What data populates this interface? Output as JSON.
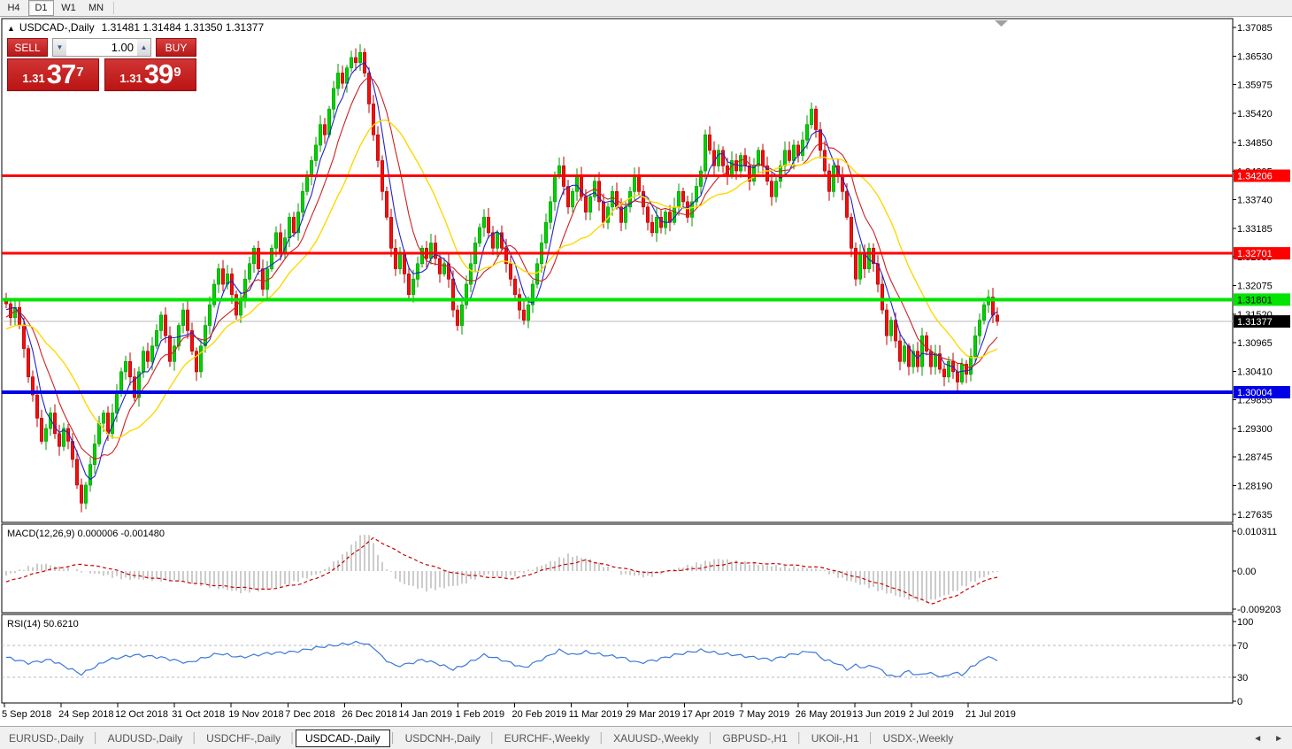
{
  "toolbar": {
    "timeframes": [
      "H4",
      "D1",
      "W1",
      "MN"
    ],
    "active_timeframe": "D1"
  },
  "chart_header": {
    "marker": "▲",
    "symbol_title": "USDCAD-,Daily",
    "ohlc_text": "1.31481 1.31484 1.31350 1.31377"
  },
  "trade_panel": {
    "sell_label": "SELL",
    "buy_label": "BUY",
    "volume": "1.00",
    "spin_down": "▼",
    "spin_up": "▲",
    "sell_price": {
      "prefix": "1.31",
      "big": "37",
      "sup": "7"
    },
    "buy_price": {
      "prefix": "1.31",
      "big": "39",
      "sup": "9"
    }
  },
  "price_axis": {
    "ticks": [
      "1.37085",
      "1.36530",
      "1.35975",
      "1.35420",
      "1.34850",
      "1.34295",
      "1.33740",
      "1.33185",
      "1.32630",
      "1.32075",
      "1.31520",
      "1.30965",
      "1.30410",
      "1.29855",
      "1.29300",
      "1.28745",
      "1.28190",
      "1.27635"
    ],
    "highlights": [
      {
        "price": 1.34206,
        "label": "1.34206",
        "bg": "#ff0000",
        "fg": "#ffffff"
      },
      {
        "price": 1.32701,
        "label": "1.32701",
        "bg": "#ff0000",
        "fg": "#ffffff"
      },
      {
        "price": 1.31801,
        "label": "1.31801",
        "bg": "#00e400",
        "fg": "#000000"
      },
      {
        "price": 1.31377,
        "label": "1.31377",
        "bg": "#000000",
        "fg": "#ffffff"
      },
      {
        "price": 1.30004,
        "label": "1.30004",
        "bg": "#0000e6",
        "fg": "#ffffff"
      }
    ]
  },
  "hlines": [
    {
      "price": 1.34206,
      "color": "#ff0000",
      "width": 3
    },
    {
      "price": 1.32701,
      "color": "#ff0000",
      "width": 3
    },
    {
      "price": 1.31801,
      "color": "#00e400",
      "width": 4
    },
    {
      "price": 1.30004,
      "color": "#0000e6",
      "width": 4
    }
  ],
  "current_price_line": {
    "price": 1.31377,
    "color": "#bbbbbb"
  },
  "chart_data": {
    "type": "candlestick",
    "symbol": "USDCAD",
    "timeframe": "Daily",
    "x_labels": [
      "5 Sep 2018",
      "24 Sep 2018",
      "12 Oct 2018",
      "31 Oct 2018",
      "19 Nov 2018",
      "7 Dec 2018",
      "26 Dec 2018",
      "14 Jan 2019",
      "1 Feb 2019",
      "20 Feb 2019",
      "11 Mar 2019",
      "29 Mar 2019",
      "17 Apr 2019",
      "7 May 2019",
      "26 May 2019",
      "13 Jun 2019",
      "2 Jul 2019",
      "21 Jul 2019"
    ],
    "y_range": [
      1.27635,
      1.37085
    ],
    "candles": {
      "up_color": "#00d200",
      "up_border": "#009a00",
      "down_color": "#ee1111",
      "down_border": "#bb0000",
      "warmup_closes": [
        1.306,
        1.308,
        1.31,
        1.312,
        1.308,
        1.304,
        1.306,
        1.31,
        1.314,
        1.316,
        1.312,
        1.309,
        1.311,
        1.314,
        1.317,
        1.315,
        1.313,
        1.316,
        1.318,
        1.316
      ],
      "closes": [
        1.3172,
        1.3145,
        1.3165,
        1.313,
        1.3085,
        1.303,
        1.2995,
        1.295,
        1.2905,
        1.293,
        1.296,
        1.292,
        1.2895,
        1.293,
        1.2905,
        1.287,
        1.282,
        1.2785,
        1.282,
        1.286,
        1.29,
        1.294,
        1.296,
        1.292,
        1.296,
        1.3,
        1.304,
        1.306,
        1.303,
        1.299,
        1.304,
        1.308,
        1.306,
        1.309,
        1.312,
        1.315,
        1.311,
        1.306,
        1.309,
        1.313,
        1.316,
        1.312,
        1.308,
        1.304,
        1.309,
        1.313,
        1.317,
        1.321,
        1.324,
        1.321,
        1.323,
        1.319,
        1.315,
        1.318,
        1.322,
        1.325,
        1.328,
        1.324,
        1.32,
        1.324,
        1.328,
        1.331,
        1.327,
        1.33,
        1.334,
        1.331,
        1.335,
        1.339,
        1.342,
        1.345,
        1.348,
        1.352,
        1.35,
        1.355,
        1.359,
        1.362,
        1.36,
        1.363,
        1.365,
        1.364,
        1.366,
        1.362,
        1.356,
        1.35,
        1.345,
        1.339,
        1.334,
        1.328,
        1.324,
        1.327,
        1.323,
        1.319,
        1.322,
        1.325,
        1.328,
        1.326,
        1.329,
        1.326,
        1.323,
        1.325,
        1.322,
        1.316,
        1.313,
        1.317,
        1.321,
        1.325,
        1.329,
        1.332,
        1.334,
        1.331,
        1.328,
        1.331,
        1.328,
        1.325,
        1.322,
        1.319,
        1.316,
        1.314,
        1.317,
        1.321,
        1.325,
        1.329,
        1.333,
        1.337,
        1.342,
        1.344,
        1.34,
        1.336,
        1.339,
        1.342,
        1.338,
        1.335,
        1.338,
        1.341,
        1.337,
        1.333,
        1.336,
        1.339,
        1.336,
        1.333,
        1.336,
        1.339,
        1.342,
        1.339,
        1.336,
        1.333,
        1.331,
        1.334,
        1.332,
        1.335,
        1.333,
        1.336,
        1.339,
        1.337,
        1.334,
        1.337,
        1.34,
        1.343,
        1.35,
        1.347,
        1.344,
        1.347,
        1.344,
        1.342,
        1.345,
        1.343,
        1.346,
        1.344,
        1.341,
        1.344,
        1.347,
        1.344,
        1.341,
        1.338,
        1.341,
        1.344,
        1.347,
        1.345,
        1.348,
        1.346,
        1.349,
        1.352,
        1.355,
        1.351,
        1.347,
        1.343,
        1.339,
        1.344,
        1.342,
        1.339,
        1.334,
        1.328,
        1.322,
        1.327,
        1.324,
        1.328,
        1.325,
        1.321,
        1.316,
        1.311,
        1.314,
        1.31,
        1.306,
        1.309,
        1.305,
        1.308,
        1.305,
        1.311,
        1.308,
        1.305,
        1.3075,
        1.3045,
        1.303,
        1.306,
        1.304,
        1.302,
        1.3055,
        1.3035,
        1.307,
        1.311,
        1.314,
        1.317,
        1.3185,
        1.315,
        1.31377
      ]
    },
    "moving_averages": [
      {
        "period": 5,
        "color": "#2222cc"
      },
      {
        "period": 10,
        "color": "#cc2222"
      },
      {
        "period": 20,
        "color": "#ffd700"
      }
    ],
    "macd": {
      "label": "MACD(12,26,9)",
      "values_label": "0.000006 -0.001480",
      "axis_ticks": [
        "0.010311",
        "0.00",
        "-0.009203"
      ],
      "hist_color": "#9a9a9a",
      "signal_color": "#cc0000",
      "hist_points": [
        [
          0,
          -0.0012
        ],
        [
          5,
          0.001
        ],
        [
          8,
          0.002
        ],
        [
          13,
          0.0008
        ],
        [
          19,
          -0.0005
        ],
        [
          27,
          -0.002
        ],
        [
          39,
          -0.0025
        ],
        [
          53,
          -0.0055
        ],
        [
          61,
          -0.0045
        ],
        [
          71,
          -0.0005
        ],
        [
          76,
          0.004
        ],
        [
          80,
          0.0092
        ],
        [
          82,
          0.0095
        ],
        [
          85,
          0.002
        ],
        [
          89,
          -0.003
        ],
        [
          95,
          -0.005
        ],
        [
          103,
          -0.0035
        ],
        [
          108,
          -0.0008
        ],
        [
          113,
          -0.0018
        ],
        [
          119,
          0.0005
        ],
        [
          127,
          0.0042
        ],
        [
          132,
          0.003
        ],
        [
          139,
          -0.0008
        ],
        [
          145,
          -0.0015
        ],
        [
          152,
          0.0008
        ],
        [
          161,
          0.0032
        ],
        [
          169,
          0.0018
        ],
        [
          177,
          0.001
        ],
        [
          184,
          0.0005
        ],
        [
          189,
          -0.002
        ],
        [
          196,
          -0.0045
        ],
        [
          203,
          -0.007
        ],
        [
          208,
          -0.008
        ],
        [
          213,
          -0.006
        ],
        [
          218,
          -0.003
        ],
        [
          224,
          6e-06
        ]
      ],
      "signal_points": [
        [
          0,
          -0.0028
        ],
        [
          9,
          0.0002
        ],
        [
          17,
          0.0018
        ],
        [
          23,
          0.0008
        ],
        [
          29,
          -0.0012
        ],
        [
          45,
          -0.0035
        ],
        [
          59,
          -0.0048
        ],
        [
          67,
          -0.0032
        ],
        [
          73,
          -0.0005
        ],
        [
          79,
          0.005
        ],
        [
          83,
          0.0085
        ],
        [
          87,
          0.006
        ],
        [
          93,
          0.0025
        ],
        [
          101,
          -0.0005
        ],
        [
          108,
          -0.0015
        ],
        [
          115,
          -0.002
        ],
        [
          123,
          0.0008
        ],
        [
          131,
          0.0028
        ],
        [
          137,
          0.0012
        ],
        [
          145,
          -0.0005
        ],
        [
          155,
          0.0005
        ],
        [
          165,
          0.0022
        ],
        [
          175,
          0.0018
        ],
        [
          185,
          0.0008
        ],
        [
          193,
          -0.0018
        ],
        [
          201,
          -0.0045
        ],
        [
          209,
          -0.0085
        ],
        [
          215,
          -0.0062
        ],
        [
          220,
          -0.003
        ],
        [
          224,
          -0.00148
        ]
      ]
    },
    "rsi": {
      "label": "RSI(14)",
      "value_label": "50.6210",
      "axis_ticks": [
        "100",
        "70",
        "30",
        "0"
      ],
      "levels": [
        70,
        30
      ],
      "line_color": "#3c78d8",
      "points": [
        [
          0,
          55
        ],
        [
          5,
          48
        ],
        [
          10,
          52
        ],
        [
          17,
          34
        ],
        [
          23,
          52
        ],
        [
          29,
          58
        ],
        [
          35,
          55
        ],
        [
          41,
          48
        ],
        [
          48,
          60
        ],
        [
          53,
          55
        ],
        [
          59,
          60
        ],
        [
          65,
          62
        ],
        [
          71,
          68
        ],
        [
          80,
          74
        ],
        [
          83,
          68
        ],
        [
          85,
          55
        ],
        [
          88,
          44
        ],
        [
          91,
          47
        ],
        [
          94,
          52
        ],
        [
          97,
          48
        ],
        [
          101,
          40
        ],
        [
          103,
          44
        ],
        [
          108,
          58
        ],
        [
          112,
          52
        ],
        [
          117,
          42
        ],
        [
          122,
          55
        ],
        [
          125,
          64
        ],
        [
          128,
          58
        ],
        [
          131,
          62
        ],
        [
          135,
          58
        ],
        [
          139,
          55
        ],
        [
          143,
          48
        ],
        [
          147,
          52
        ],
        [
          151,
          58
        ],
        [
          157,
          64
        ],
        [
          161,
          60
        ],
        [
          165,
          58
        ],
        [
          169,
          55
        ],
        [
          173,
          52
        ],
        [
          177,
          58
        ],
        [
          182,
          63
        ],
        [
          185,
          52
        ],
        [
          188,
          47
        ],
        [
          190,
          40
        ],
        [
          192,
          45
        ],
        [
          194,
          42
        ],
        [
          196,
          45
        ],
        [
          199,
          34
        ],
        [
          201,
          30
        ],
        [
          204,
          38
        ],
        [
          206,
          32
        ],
        [
          208,
          36
        ],
        [
          210,
          33
        ],
        [
          212,
          30
        ],
        [
          214,
          36
        ],
        [
          216,
          33
        ],
        [
          218,
          42
        ],
        [
          220,
          50
        ],
        [
          222,
          56
        ],
        [
          223,
          54
        ],
        [
          224,
          50.62
        ]
      ]
    }
  },
  "bottom_tabs": {
    "tabs": [
      "EURUSD-,Daily",
      "AUDUSD-,Daily",
      "USDCHF-,Daily",
      "USDCAD-,Daily",
      "USDCNH-,Daily",
      "EURCHF-,Weekly",
      "XAUUSD-,Weekly",
      "GBPUSD-,H1",
      "UKOil-,H1",
      "USDX-,Weekly"
    ],
    "active": "USDCAD-,Daily",
    "scroll_left": "◄",
    "scroll_right": "►"
  }
}
